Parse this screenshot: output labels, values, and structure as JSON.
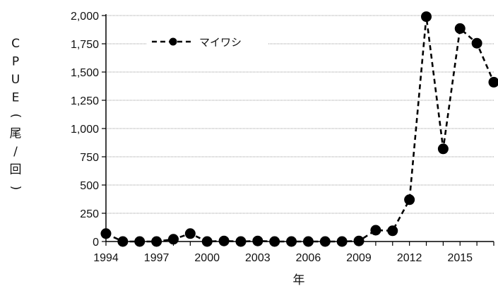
{
  "chart_data": {
    "type": "line",
    "title": "",
    "xlabel": "年",
    "ylabel": "CPUE(尾/回)",
    "ylim": [
      0,
      2000
    ],
    "xlim": [
      1994,
      2017
    ],
    "yticks": [
      "0",
      "250",
      "500",
      "750",
      "1,000",
      "1,250",
      "1,500",
      "1,750",
      "2,000"
    ],
    "ytick_values": [
      0,
      250,
      500,
      750,
      1000,
      1250,
      1500,
      1750,
      2000
    ],
    "xticks": [
      "1994",
      "1997",
      "2000",
      "2003",
      "2006",
      "2009",
      "2012",
      "2015"
    ],
    "xtick_values": [
      1994,
      1997,
      2000,
      2003,
      2006,
      2009,
      2012,
      2015
    ],
    "grid": true,
    "legend_position": "top-left",
    "series": [
      {
        "name": "マイワシ",
        "color": "#000000",
        "line_style": "dashed",
        "marker": "circle",
        "x": [
          1994,
          1995,
          1996,
          1997,
          1998,
          1999,
          2000,
          2001,
          2002,
          2003,
          2004,
          2005,
          2006,
          2007,
          2008,
          2009,
          2010,
          2011,
          2012,
          2013,
          2014,
          2015,
          2016,
          2017
        ],
        "y": [
          70,
          0,
          0,
          0,
          20,
          70,
          0,
          5,
          0,
          5,
          0,
          0,
          0,
          0,
          0,
          5,
          100,
          95,
          370,
          1990,
          820,
          1885,
          1755,
          1410
        ]
      }
    ]
  }
}
